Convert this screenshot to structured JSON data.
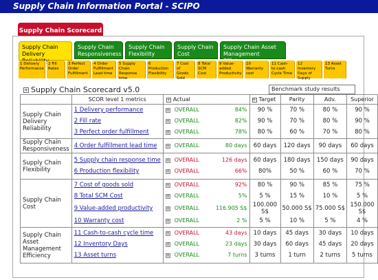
{
  "app": {
    "title": "Supply Chain Information Portal - SCIPO"
  },
  "scorecard_tab": "Supply Chain Scorecard",
  "category_tabs": [
    {
      "label": "Supply Chain Delivery Reliability",
      "active": true
    },
    {
      "label": "Supply Chain Responsiveness",
      "active": false
    },
    {
      "label": "Supply Chain Flexibility",
      "active": false
    },
    {
      "label": "Supply Chain Cost",
      "active": false
    },
    {
      "label": "Supply Chain Asset Management Efficiency",
      "active": false
    }
  ],
  "sub_tabs": [
    "1 Delivery Performance",
    "2 Fill Rates",
    "3 Perfect Order Fulfillment",
    "4 Order Fulfillment Lead time",
    "5 Supply Chain Response time",
    "6 Production Flexibility",
    "7 Cost of Goods Sold",
    "8 Total SCM Cost",
    "9 Value-added Productivity",
    "10 Warranty cost",
    "11 Cash-to-cash Cycle Time",
    "12 Inventory Days of Supply",
    "13 Asset Turns"
  ],
  "card": {
    "title": "Supply Chain Scorecard v5.0",
    "benchmark_label": "Benchmark study results"
  },
  "headers": {
    "scor": "SCOR level 1 metrics",
    "actual": "Actual",
    "target": "Target",
    "parity": "Parity",
    "adv": "Adv.",
    "superior": "Superior"
  },
  "rows": [
    {
      "category": "Supply Chain Delivery Reliability",
      "metrics": [
        {
          "name": "1 Delivery performance",
          "status": "ok",
          "overall": "OVERALL",
          "actual": "84%",
          "target": "90 %",
          "parity": "70 %",
          "adv": "80 %",
          "superior": "90 %"
        },
        {
          "name": "2 Fill rate",
          "status": "ok",
          "overall": "OVERALL",
          "actual": "82%",
          "target": "90 %",
          "parity": "70 %",
          "adv": "80 %",
          "superior": "90 %"
        },
        {
          "name": "3 Perfect order fulfillment",
          "status": "ok",
          "overall": "OVERALL",
          "actual": "78%",
          "target": "80 %",
          "parity": "60 %",
          "adv": "70 %",
          "superior": "80 %"
        }
      ]
    },
    {
      "category": "Supply Chain Responsiveness",
      "metrics": [
        {
          "name": "4 Order fulfillment lead time",
          "status": "ok",
          "overall": "OVERALL",
          "actual": "80 days",
          "target": "60 days",
          "parity": "120 days",
          "adv": "90 days",
          "superior": "60 days"
        }
      ]
    },
    {
      "category": "Supply Chain Flexibility",
      "metrics": [
        {
          "name": "5 Supply chain response time",
          "status": "bad",
          "overall": "OVERALL",
          "actual": "126 days",
          "target": "60 days",
          "parity": "180 days",
          "adv": "150 days",
          "superior": "90 days"
        },
        {
          "name": "6 Production flexibility",
          "status": "bad",
          "overall": "OVERALL",
          "actual": "66%",
          "target": "80%",
          "parity": "50 %",
          "adv": "60 %",
          "superior": "70 %"
        }
      ]
    },
    {
      "category": "Supply Chain Cost",
      "metrics": [
        {
          "name": "7 Cost of goods sold",
          "status": "bad",
          "overall": "OVERALL",
          "actual": "92%",
          "target": "80 %",
          "parity": "90 %",
          "adv": "85 %",
          "superior": "75 %"
        },
        {
          "name": "8 Total SCM Cost",
          "status": "ok",
          "overall": "OVERALL",
          "actual": "5%",
          "target": "5 %",
          "parity": "15 %",
          "adv": "10 %",
          "superior": "5 %"
        },
        {
          "name": "9 Value-added productivity",
          "status": "ok",
          "overall": "OVERALL",
          "actual": "116.905 S$",
          "target": "100.000 S$",
          "parity": "50.000 S$",
          "adv": "75.000 S$",
          "superior": "150.000 S$"
        },
        {
          "name": "10 Warranty cost",
          "status": "ok",
          "overall": "OVERALL",
          "actual": "2 %",
          "target": "5 %",
          "parity": "10 %",
          "adv": "5 %",
          "superior": "4 %"
        }
      ]
    },
    {
      "category": "Supply Chain Asset Management Efficiency",
      "metrics": [
        {
          "name": "11 Cash-to-cash cycle time",
          "status": "bad",
          "overall": "OVERALL",
          "actual": "43 days",
          "target": "10 days",
          "parity": "45 days",
          "adv": "30 days",
          "superior": "10 days"
        },
        {
          "name": "12 Inventory Days",
          "status": "ok",
          "overall": "OVERALL",
          "actual": "23 days",
          "target": "30 days",
          "parity": "60 days",
          "adv": "45 days",
          "superior": "20 days"
        },
        {
          "name": "13 Asset turns",
          "status": "ok",
          "overall": "OVERALL",
          "actual": "7 turns",
          "target": "3 turns",
          "parity": "1 turn",
          "adv": "2 turns",
          "superior": "5 turns"
        }
      ]
    }
  ],
  "colors": {
    "titlebar": "#0a1a9a",
    "scorecard_tab": "#c8102e",
    "green": "#1a8a1a",
    "yellow": "#ffe200",
    "orange": "#ffc600",
    "link": "#1a1aa0"
  }
}
